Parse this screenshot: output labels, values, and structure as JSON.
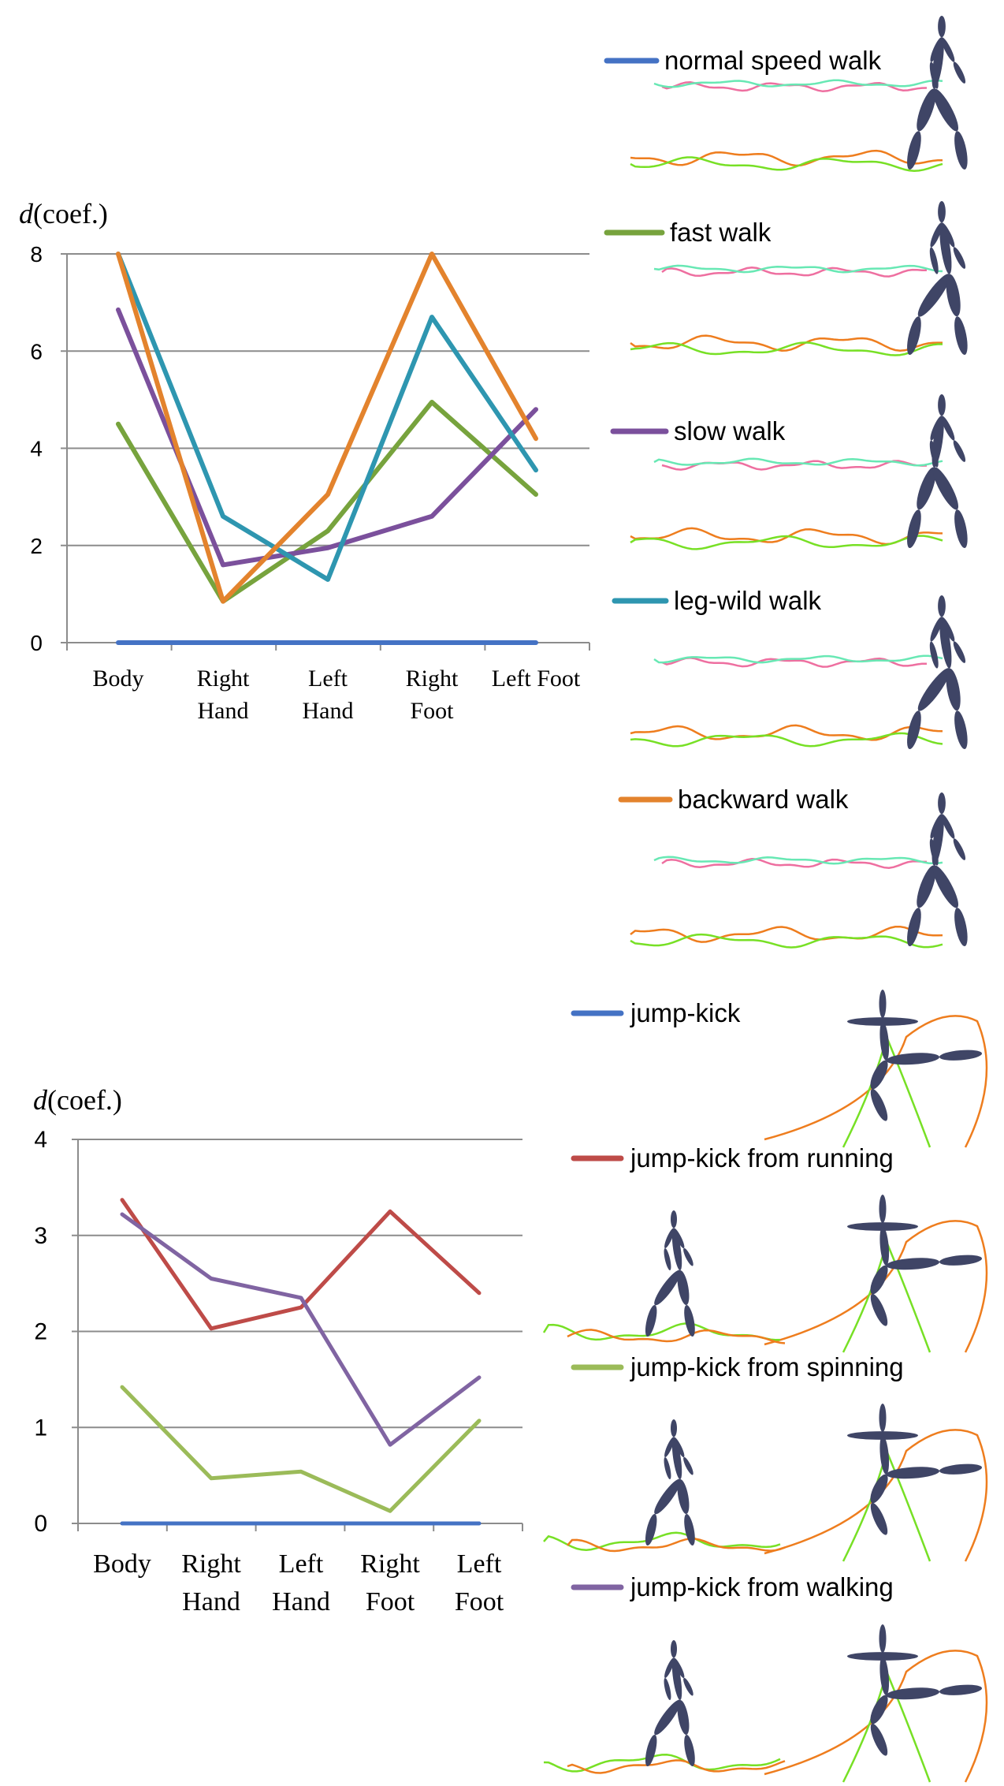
{
  "chart_data": [
    {
      "type": "line",
      "ylabel_italic": "d",
      "ylabel_rest": "(coef.)",
      "categories": [
        "Body",
        "Right Hand",
        "Left Hand",
        "Right Foot",
        "Left Foot"
      ],
      "category_lines": [
        [
          "Body"
        ],
        [
          "Right",
          "Hand"
        ],
        [
          "Left",
          "Hand"
        ],
        [
          "Right",
          "Foot"
        ],
        [
          "Left Foot"
        ]
      ],
      "ylim": [
        0,
        8
      ],
      "yticks": [
        "0",
        "2",
        "4",
        "6",
        "8"
      ],
      "grid": true,
      "legend_position": "right",
      "series": [
        {
          "name": "normal speed walk",
          "color": "#4472C4",
          "values": [
            0,
            0,
            0,
            0,
            0
          ]
        },
        {
          "name": "fast walk",
          "color": "#77A33D",
          "values": [
            4.5,
            0.85,
            2.3,
            4.95,
            3.05
          ]
        },
        {
          "name": "slow walk",
          "color": "#7B509C",
          "values": [
            6.85,
            1.6,
            1.95,
            2.6,
            4.8
          ]
        },
        {
          "name": "leg-wild walk",
          "color": "#2E96B0",
          "values": [
            8.0,
            2.6,
            1.3,
            6.7,
            3.55
          ]
        },
        {
          "name": "backward walk",
          "color": "#E3832D",
          "values": [
            8.0,
            0.85,
            3.05,
            8.0,
            4.2
          ]
        }
      ]
    },
    {
      "type": "line",
      "ylabel_italic": "d",
      "ylabel_rest": "(coef.)",
      "categories": [
        "Body",
        "Right Hand",
        "Left Hand",
        "Right Foot",
        "Left Foot"
      ],
      "category_lines": [
        [
          "Body"
        ],
        [
          "Right",
          "Hand"
        ],
        [
          "Left",
          "Hand"
        ],
        [
          "Right",
          "Foot"
        ],
        [
          "Left",
          "Foot"
        ]
      ],
      "ylim": [
        0,
        4
      ],
      "yticks": [
        "0",
        "1",
        "2",
        "3",
        "4"
      ],
      "grid": true,
      "legend_position": "right",
      "series": [
        {
          "name": "jump-kick",
          "color": "#4472C4",
          "values": [
            0,
            0,
            0,
            0,
            0
          ]
        },
        {
          "name": "jump-kick from running",
          "color": "#BE4B48",
          "values": [
            3.37,
            2.03,
            2.25,
            3.25,
            2.4
          ]
        },
        {
          "name": "jump-kick from spinning",
          "color": "#9BBB59",
          "values": [
            1.42,
            0.47,
            0.54,
            0.13,
            1.07
          ]
        },
        {
          "name": "jump-kick from walking",
          "color": "#8064A2",
          "values": [
            3.22,
            2.55,
            2.35,
            0.82,
            1.52
          ]
        }
      ]
    }
  ],
  "figures": {
    "body_color": "#3F4566",
    "trace_colors": {
      "pink": "#EE6FA0",
      "mint": "#68E8B4",
      "orange": "#EE7D1E",
      "green": "#77E025"
    }
  }
}
